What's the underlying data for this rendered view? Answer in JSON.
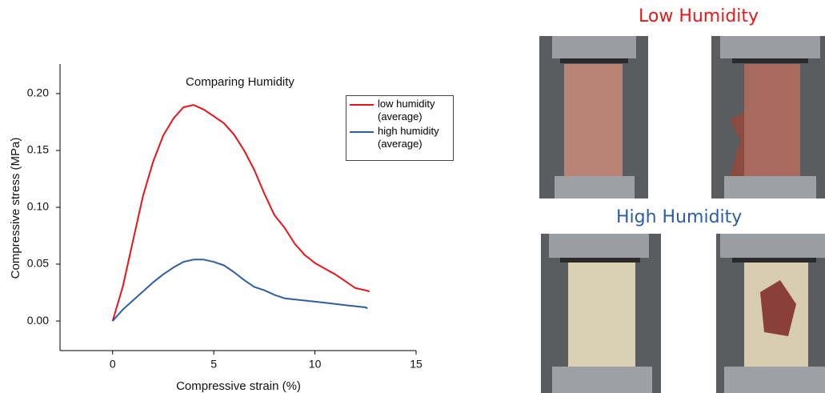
{
  "chart_data": {
    "type": "line",
    "title": "Comparing Humidity",
    "x_label": "Compressive strain (%)",
    "y_label": "Compressive stress (MPa)",
    "xlim": [
      -2.6,
      15
    ],
    "xticks": [
      0,
      5,
      10,
      15
    ],
    "ylim": [
      -0.026,
      0.226
    ],
    "yticks": [
      {
        "value": 0,
        "label": "0.00"
      },
      0.05,
      {
        "value": 0.1,
        "label": "0.10"
      },
      0.15,
      {
        "value": 0.2,
        "label": "0.20"
      }
    ],
    "series": [
      {
        "name": "low humidity (average)",
        "color": "#e8141a",
        "x": [
          0,
          0.5,
          1,
          1.5,
          2,
          2.5,
          3,
          3.5,
          4,
          4.5,
          5,
          5.5,
          6,
          6.5,
          7,
          7.5,
          8,
          8.5,
          9,
          9.5,
          10,
          10.5,
          11,
          11.5,
          12,
          12.5,
          12.7
        ],
        "values": [
          0,
          0.03,
          0.07,
          0.11,
          0.14,
          0.163,
          0.178,
          0.188,
          0.19,
          0.186,
          0.18,
          0.174,
          0.164,
          0.15,
          0.133,
          0.112,
          0.093,
          0.082,
          0.068,
          0.058,
          0.051,
          0.046,
          0.041,
          0.035,
          0.029,
          0.027,
          0.026
        ]
      },
      {
        "name": "high humidity (average)",
        "color": "#2f5e9e",
        "x": [
          0,
          0.5,
          1,
          1.5,
          2,
          2.5,
          3,
          3.5,
          4,
          4.5,
          5,
          5.5,
          6,
          6.5,
          7,
          7.5,
          8,
          8.5,
          9,
          9.5,
          10,
          10.5,
          11,
          11.5,
          12,
          12.5,
          12.6
        ],
        "values": [
          0,
          0.01,
          0.018,
          0.026,
          0.034,
          0.041,
          0.047,
          0.052,
          0.054,
          0.054,
          0.052,
          0.049,
          0.043,
          0.036,
          0.03,
          0.027,
          0.023,
          0.02,
          0.019,
          0.018,
          0.017,
          0.016,
          0.015,
          0.014,
          0.013,
          0.012,
          0.011
        ]
      }
    ]
  },
  "photos": {
    "low_label": "Low Humidity",
    "high_label": "High Humidity"
  }
}
